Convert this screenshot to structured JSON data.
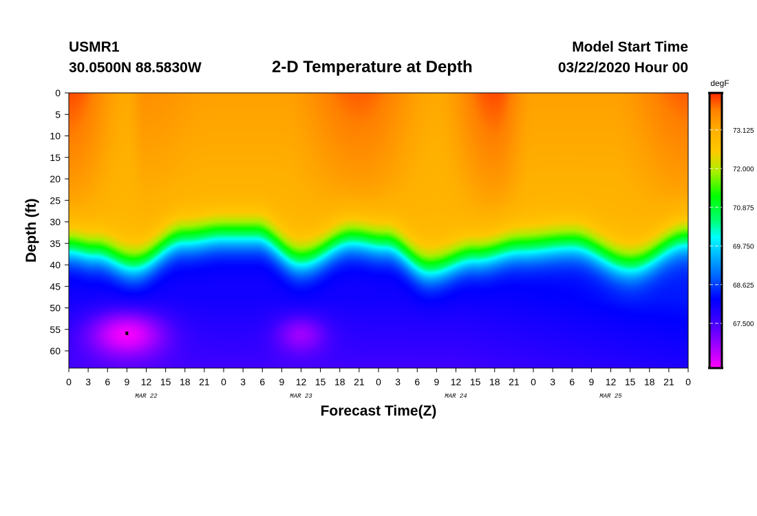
{
  "header": {
    "station": "USMR1",
    "coordinates": "30.0500N 88.5830W",
    "title": "2-D Temperature at Depth",
    "start_label": "Model Start Time",
    "start_value": "03/22/2020 Hour 00"
  },
  "chart_data": {
    "type": "heatmap",
    "title": "2-D Temperature at Depth",
    "xlabel": "Forecast Time(Z)",
    "ylabel": "Depth (ft)",
    "x_range_hours": [
      0,
      96
    ],
    "xticks": [
      {
        "h": 0,
        "label": "0"
      },
      {
        "h": 3,
        "label": "3"
      },
      {
        "h": 6,
        "label": "6"
      },
      {
        "h": 9,
        "label": "9"
      },
      {
        "h": 12,
        "label": "12"
      },
      {
        "h": 15,
        "label": "15"
      },
      {
        "h": 18,
        "label": "18"
      },
      {
        "h": 21,
        "label": "21"
      },
      {
        "h": 24,
        "label": "0"
      },
      {
        "h": 27,
        "label": "3"
      },
      {
        "h": 30,
        "label": "6"
      },
      {
        "h": 33,
        "label": "9"
      },
      {
        "h": 36,
        "label": "12"
      },
      {
        "h": 39,
        "label": "15"
      },
      {
        "h": 42,
        "label": "18"
      },
      {
        "h": 45,
        "label": "21"
      },
      {
        "h": 48,
        "label": "0"
      },
      {
        "h": 51,
        "label": "3"
      },
      {
        "h": 54,
        "label": "6"
      },
      {
        "h": 57,
        "label": "9"
      },
      {
        "h": 60,
        "label": "12"
      },
      {
        "h": 63,
        "label": "15"
      },
      {
        "h": 66,
        "label": "18"
      },
      {
        "h": 69,
        "label": "21"
      },
      {
        "h": 72,
        "label": "0"
      },
      {
        "h": 75,
        "label": "3"
      },
      {
        "h": 78,
        "label": "6"
      },
      {
        "h": 81,
        "label": "9"
      },
      {
        "h": 84,
        "label": "12"
      },
      {
        "h": 87,
        "label": "15"
      },
      {
        "h": 90,
        "label": "18"
      },
      {
        "h": 93,
        "label": "21"
      },
      {
        "h": 96,
        "label": "0"
      }
    ],
    "date_labels": [
      {
        "h": 12,
        "label": "MAR 22"
      },
      {
        "h": 36,
        "label": "MAR 23"
      },
      {
        "h": 60,
        "label": "MAR 24"
      },
      {
        "h": 84,
        "label": "MAR 25"
      }
    ],
    "y_range_ft": [
      0,
      64
    ],
    "yticks": [
      0,
      5,
      10,
      15,
      20,
      25,
      30,
      35,
      40,
      45,
      50,
      55,
      60
    ],
    "units": "degF",
    "colorbar": {
      "range": [
        66.2,
        74.2
      ],
      "tick_values": [
        73.125,
        72.0,
        70.875,
        69.75,
        68.625,
        67.5
      ],
      "tick_labels": [
        "73.125",
        "72.000",
        "70.875",
        "69.750",
        "68.625",
        "67.500"
      ]
    },
    "palette": [
      [
        66.2,
        "#ff00ff"
      ],
      [
        67.0,
        "#8a00ff"
      ],
      [
        67.6,
        "#3a00ff"
      ],
      [
        68.2,
        "#0000ff"
      ],
      [
        68.9,
        "#0068ff"
      ],
      [
        69.6,
        "#00c8ff"
      ],
      [
        70.0,
        "#00ffff"
      ],
      [
        70.5,
        "#00ff70"
      ],
      [
        71.2,
        "#00ff00"
      ],
      [
        71.9,
        "#a8f000"
      ],
      [
        72.5,
        "#ffc800"
      ],
      [
        73.1,
        "#ffb000"
      ],
      [
        73.7,
        "#ff8000"
      ],
      [
        74.2,
        "#ff2800"
      ]
    ],
    "surface_temp_series": {
      "hours": [
        0,
        9,
        12,
        22,
        33,
        45,
        57,
        66,
        72,
        84,
        96
      ],
      "values": [
        74.0,
        73.2,
        73.5,
        73.3,
        73.3,
        73.9,
        73.2,
        74.0,
        73.3,
        73.3,
        73.9
      ]
    },
    "thermocline_depth_series": {
      "hours": [
        0,
        4,
        10,
        18,
        24,
        29,
        36,
        44,
        49,
        56,
        63,
        70,
        78,
        87,
        96
      ],
      "depth_ft": [
        36,
        37,
        40,
        34,
        33,
        33,
        39,
        34,
        35,
        41,
        38,
        36,
        35,
        40,
        34
      ]
    },
    "deep_min": {
      "hour": 9,
      "depth_ft": 56,
      "value": 66.4
    },
    "secondary_min": {
      "hour": 36,
      "depth_ft": 56,
      "value": 67.0
    },
    "marker": {
      "hour": 9,
      "depth_ft": 56
    }
  }
}
